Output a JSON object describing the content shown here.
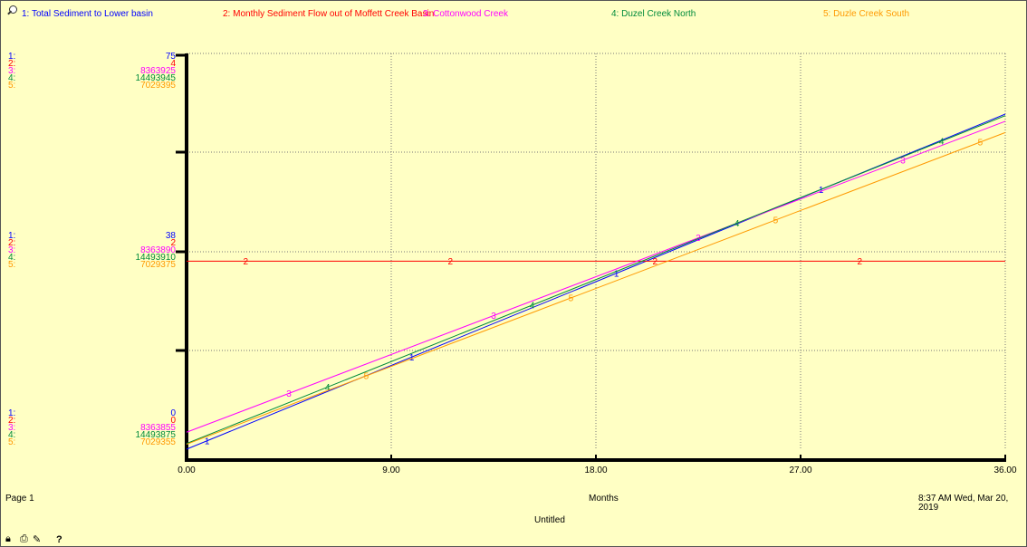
{
  "colors": {
    "s1": "#0000ff",
    "s2": "#ff0000",
    "s3": "#ff00ff",
    "s4": "#008b3a",
    "s5": "#ff9900"
  },
  "legend": [
    {
      "label": "1: Total Sediment to Lower basin"
    },
    {
      "label": "2: Monthly Sediment Flow out of Moffett Creek Basin"
    },
    {
      "label": "3: Cottonwood Creek"
    },
    {
      "label": "4: Duzel Creek North"
    },
    {
      "label": "5: Duzle Creek South"
    }
  ],
  "scales": {
    "top": {
      "n": [
        "1:",
        "2:",
        "3:",
        "4:",
        "5:"
      ],
      "v": [
        "75",
        "4",
        "8363925",
        "14493945",
        "7029395"
      ]
    },
    "middle": {
      "n": [
        "1:",
        "2:",
        "3:",
        "4:",
        "5:"
      ],
      "v": [
        "38",
        "2",
        "8363890",
        "14493910",
        "7029375"
      ]
    },
    "bottom": {
      "n": [
        "1:",
        "2:",
        "3:",
        "4:",
        "5:"
      ],
      "v": [
        "0",
        "0",
        "8363855",
        "14493875",
        "7029355"
      ]
    }
  },
  "footer": {
    "page": "Page 1",
    "xlabel": "Months",
    "title": "Untitled",
    "timestamp": "8:37 AM  Wed, Mar 20, 2019"
  },
  "chart_data": {
    "type": "line",
    "xlabel": "Months",
    "x_ticks": [
      "0.00",
      "9.00",
      "18.00",
      "27.00",
      "36.00"
    ],
    "xlim": [
      0,
      36
    ],
    "series": [
      {
        "name": "1: Total Sediment to Lower basin",
        "ylim": [
          0,
          75
        ],
        "x": [
          0,
          36
        ],
        "y": [
          0,
          63.5
        ],
        "marker_x": [
          0.9,
          9.9,
          18.9,
          27.9
        ]
      },
      {
        "name": "2: Monthly Sediment Flow out of Moffett Creek Basin",
        "ylim": [
          0,
          4
        ],
        "x": [
          0,
          36
        ],
        "y": [
          1.9,
          1.9
        ],
        "marker_x": [
          2.6,
          11.6,
          20.6,
          29.6
        ]
      },
      {
        "name": "3: Cottonwood Creek",
        "ylim": [
          8363855,
          8363925
        ],
        "x": [
          0,
          36
        ],
        "y": [
          8363858,
          8363913
        ],
        "marker_x": [
          4.5,
          13.5,
          22.5,
          31.5
        ]
      },
      {
        "name": "4: Duzel Creek North",
        "ylim": [
          14493875,
          14493945
        ],
        "x": [
          0,
          36
        ],
        "y": [
          14493876,
          14493934
        ],
        "marker_x": [
          6.2,
          15.2,
          24.2,
          33.2
        ]
      },
      {
        "name": "5: Duzle Creek South",
        "ylim": [
          7029355,
          7029395
        ],
        "x": [
          0,
          36
        ],
        "y": [
          7029355.5,
          7029387
        ],
        "marker_x": [
          7.9,
          16.9,
          25.9,
          34.9
        ]
      }
    ]
  },
  "toolbar": {
    "help": "?"
  }
}
